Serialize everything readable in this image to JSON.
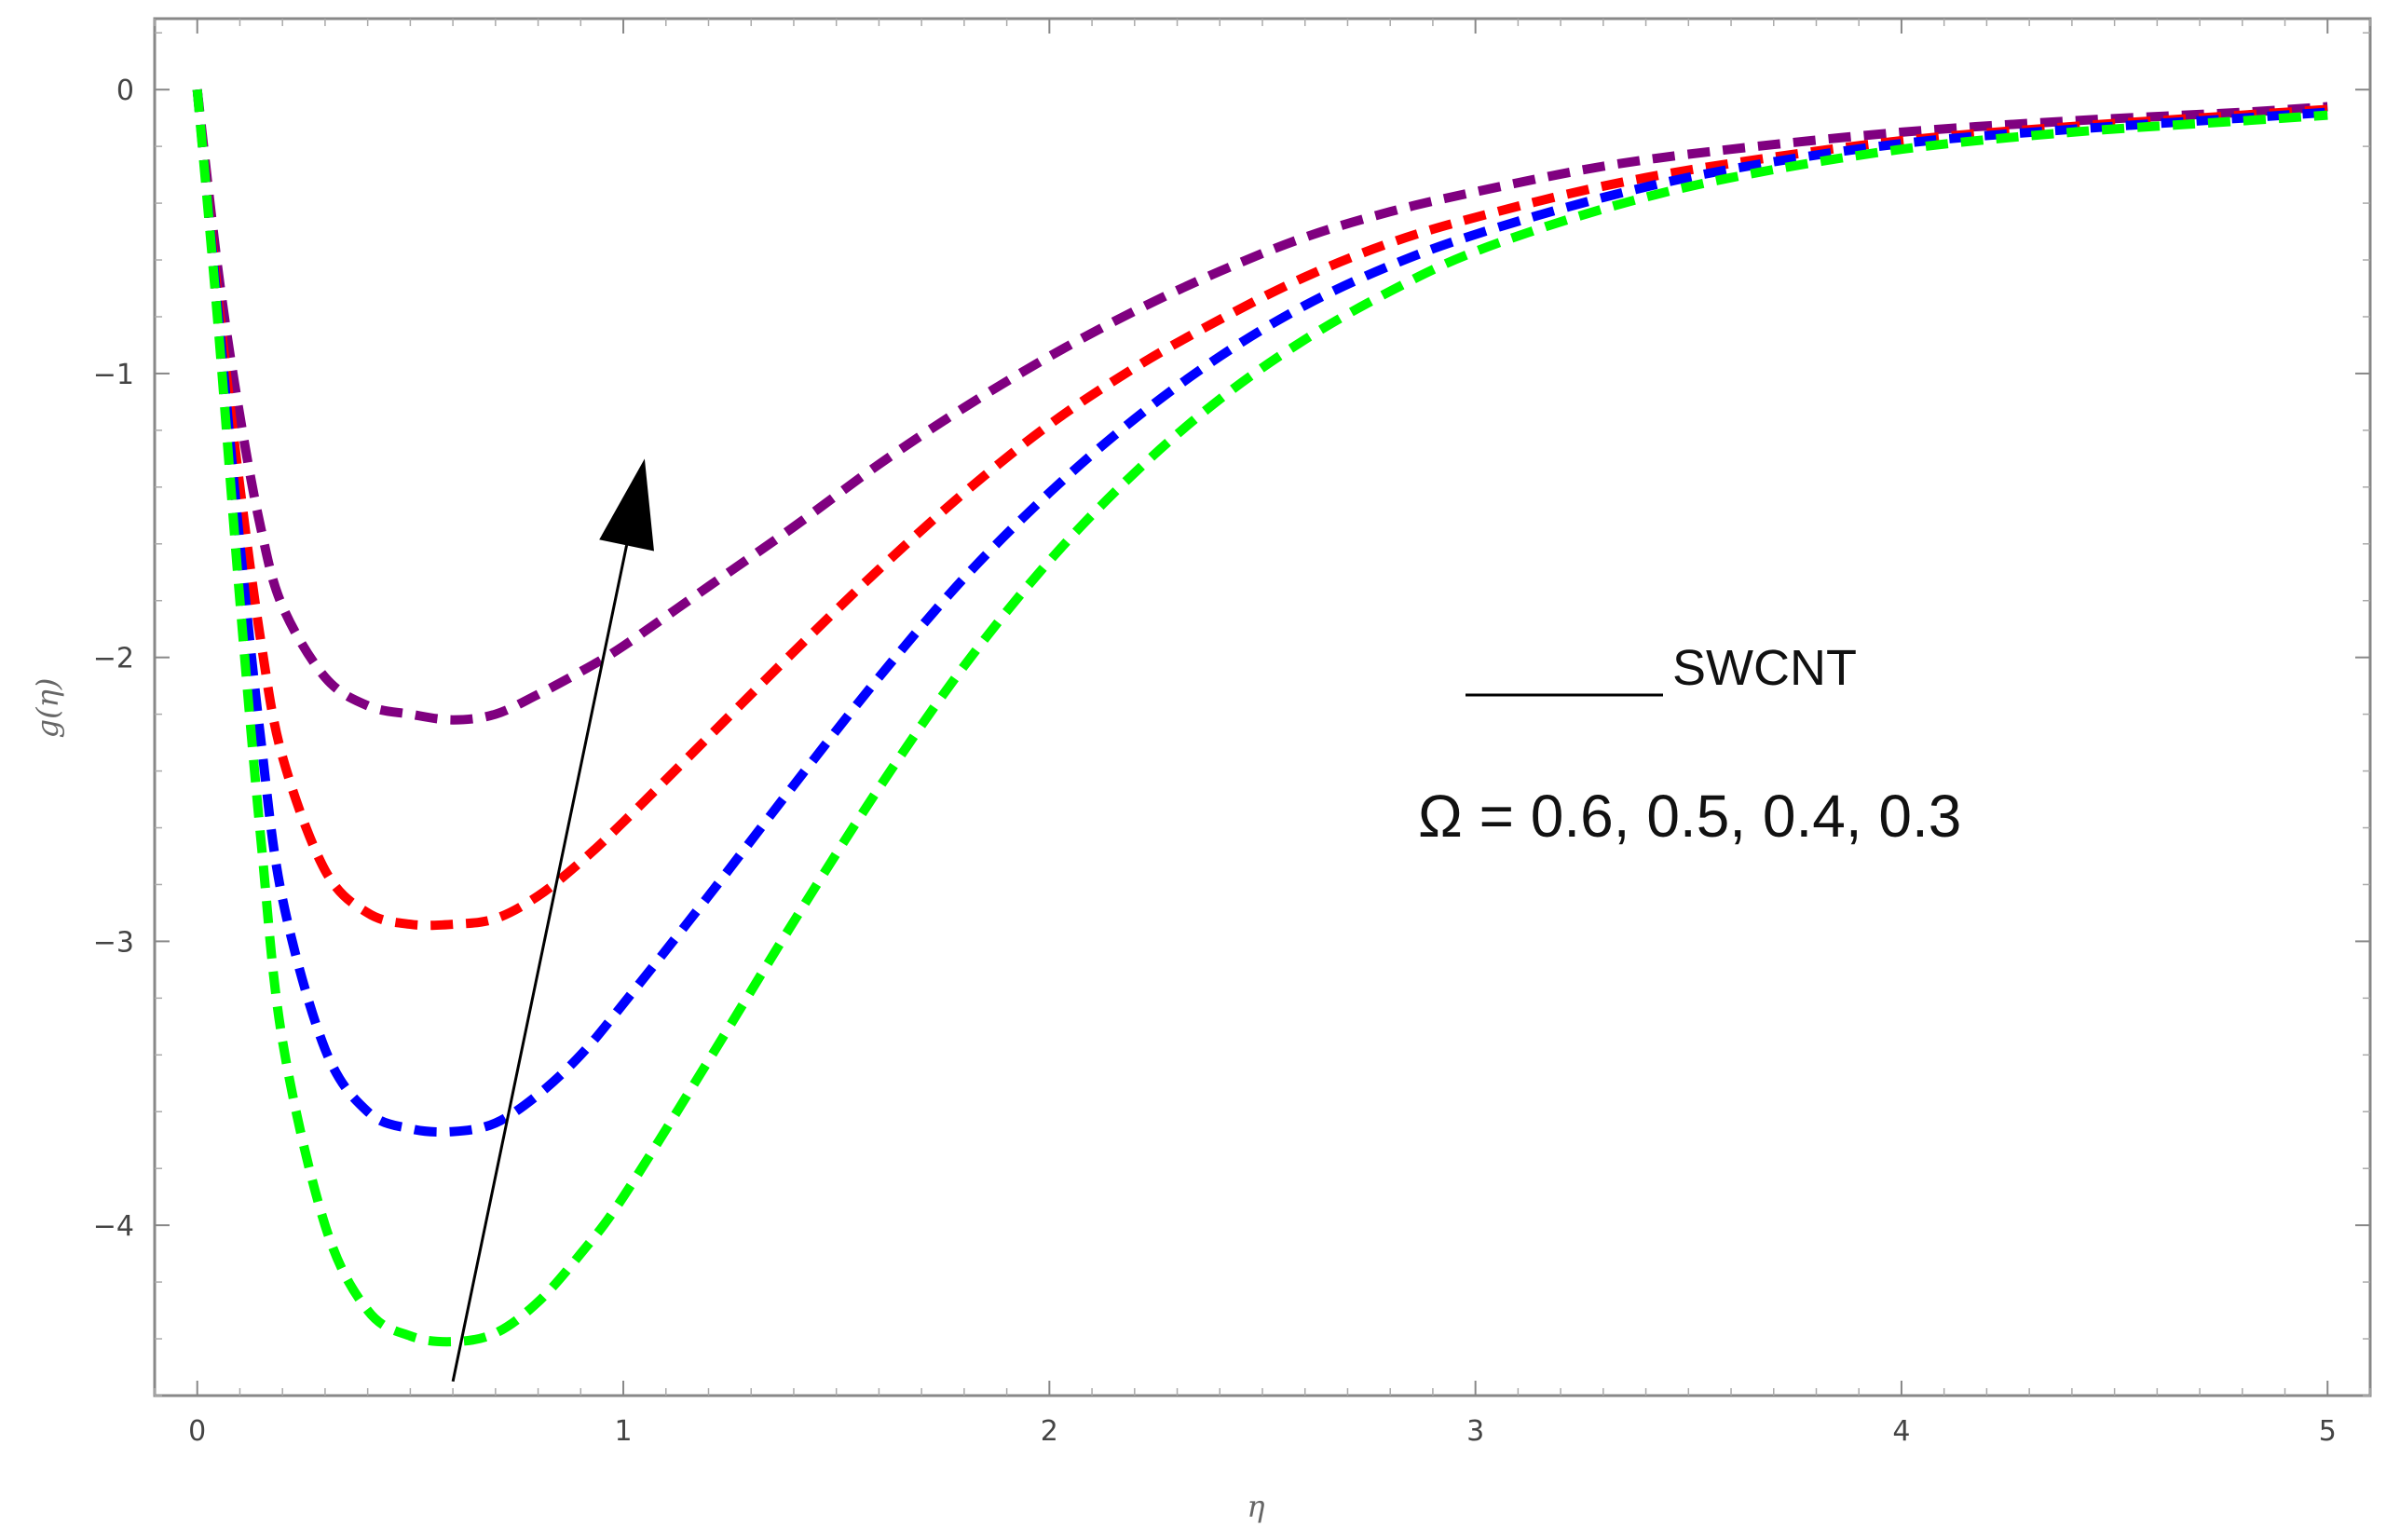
{
  "chart_data": {
    "type": "line",
    "title": "",
    "xlabel": "η",
    "ylabel": "g(η)",
    "xlim": [
      -0.1,
      5.1
    ],
    "ylim": [
      -4.6,
      0.25
    ],
    "x_ticks": [
      0,
      1,
      2,
      3,
      4,
      5
    ],
    "y_ticks": [
      0,
      -1,
      -2,
      -3,
      -4
    ],
    "x_tick_labels": [
      "0",
      "1",
      "2",
      "3",
      "4",
      "5"
    ],
    "y_tick_labels": [
      "0",
      "−1",
      "−2",
      "−3",
      "−4"
    ],
    "grid": false,
    "line_style": "dashed",
    "series": [
      {
        "color": "#800080",
        "x": [
          0,
          0.05,
          0.1,
          0.15,
          0.2,
          0.3,
          0.4,
          0.5,
          0.6,
          0.7,
          0.8,
          0.9,
          1.0,
          1.2,
          1.4,
          1.6,
          1.8,
          2.0,
          2.2,
          2.4,
          2.6,
          2.8,
          3.0,
          3.3,
          3.6,
          4.0,
          4.4,
          4.8,
          5.0
        ],
        "y": [
          0,
          -0.65,
          -1.15,
          -1.55,
          -1.82,
          -2.07,
          -2.17,
          -2.2,
          -2.22,
          -2.2,
          -2.13,
          -2.05,
          -1.96,
          -1.75,
          -1.54,
          -1.32,
          -1.12,
          -0.94,
          -0.78,
          -0.64,
          -0.52,
          -0.43,
          -0.36,
          -0.27,
          -0.21,
          -0.15,
          -0.11,
          -0.08,
          -0.06
        ]
      },
      {
        "color": "#ff0000",
        "x": [
          0,
          0.05,
          0.1,
          0.15,
          0.2,
          0.3,
          0.4,
          0.5,
          0.6,
          0.7,
          0.8,
          0.9,
          1.0,
          1.2,
          1.4,
          1.6,
          1.8,
          2.0,
          2.2,
          2.4,
          2.6,
          2.8,
          3.0,
          3.3,
          3.6,
          4.0,
          4.4,
          4.8,
          5.0
        ],
        "y": [
          0,
          -0.75,
          -1.4,
          -1.95,
          -2.35,
          -2.75,
          -2.9,
          -2.94,
          -2.94,
          -2.92,
          -2.84,
          -2.72,
          -2.58,
          -2.28,
          -1.98,
          -1.69,
          -1.42,
          -1.18,
          -0.98,
          -0.81,
          -0.66,
          -0.54,
          -0.45,
          -0.34,
          -0.26,
          -0.18,
          -0.13,
          -0.09,
          -0.07
        ]
      },
      {
        "color": "#0000ff",
        "x": [
          0,
          0.05,
          0.1,
          0.15,
          0.2,
          0.3,
          0.4,
          0.5,
          0.6,
          0.7,
          0.8,
          0.9,
          1.0,
          1.2,
          1.4,
          1.6,
          1.8,
          2.0,
          2.2,
          2.4,
          2.6,
          2.8,
          3.0,
          3.3,
          3.6,
          4.0,
          4.4,
          4.8,
          5.0
        ],
        "y": [
          0,
          -0.8,
          -1.6,
          -2.3,
          -2.85,
          -3.38,
          -3.6,
          -3.66,
          -3.67,
          -3.64,
          -3.54,
          -3.4,
          -3.22,
          -2.84,
          -2.45,
          -2.07,
          -1.72,
          -1.42,
          -1.16,
          -0.94,
          -0.76,
          -0.62,
          -0.51,
          -0.38,
          -0.28,
          -0.19,
          -0.14,
          -0.1,
          -0.08
        ]
      },
      {
        "color": "#00ff00",
        "x": [
          0,
          0.05,
          0.1,
          0.15,
          0.2,
          0.3,
          0.4,
          0.5,
          0.6,
          0.7,
          0.8,
          0.9,
          1.0,
          1.2,
          1.4,
          1.6,
          1.8,
          2.0,
          2.2,
          2.4,
          2.6,
          2.8,
          3.0,
          3.3,
          3.6,
          4.0,
          4.4,
          4.8,
          5.0
        ],
        "y": [
          0,
          -0.85,
          -1.8,
          -2.65,
          -3.35,
          -4.0,
          -4.3,
          -4.39,
          -4.41,
          -4.38,
          -4.27,
          -4.1,
          -3.9,
          -3.42,
          -2.93,
          -2.46,
          -2.03,
          -1.66,
          -1.35,
          -1.09,
          -0.88,
          -0.71,
          -0.57,
          -0.42,
          -0.31,
          -0.21,
          -0.15,
          -0.11,
          -0.09
        ]
      }
    ],
    "annotations": {
      "legend_text": "SWCNT",
      "parameter_text": "Ω = 0.6, 0.5, 0.4, 0.3",
      "arrow": {
        "from": {
          "x": 0.6,
          "y": -4.55
        },
        "to": {
          "x": 1.05,
          "y": -1.3
        }
      }
    }
  }
}
